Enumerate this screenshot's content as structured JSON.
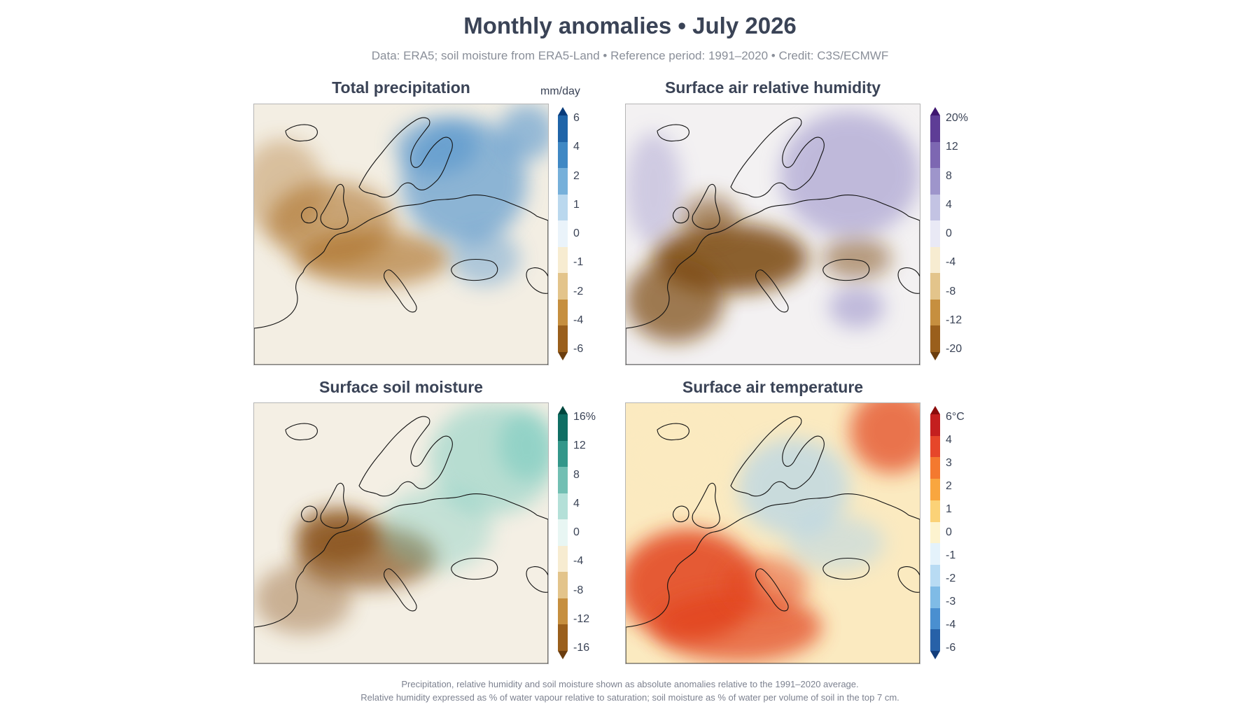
{
  "header": {
    "title": "Monthly anomalies • July 2026",
    "subtitle": "Data: ERA5; soil moisture from ERA5-Land • Reference period: 1991–2020 • Credit: C3S/ECMWF"
  },
  "panels": [
    {
      "id": "precip",
      "title": "Total precipitation",
      "unit": "mm/day",
      "ticks": [
        "6",
        "4",
        "2",
        "1",
        "0",
        "-1",
        "-2",
        "-4",
        "-6"
      ],
      "colors": [
        "#083b7a",
        "#1f64a8",
        "#3f88c4",
        "#76b0da",
        "#bad8ee",
        "#eaf3fa",
        "#f7ecd1",
        "#e3c48b",
        "#c68f3f",
        "#9a5f1c",
        "#6b3d0e"
      ],
      "map_palette": {
        "wet": "#4a8ecb",
        "neutral": "#f3eee3",
        "dry": "#a8691f"
      }
    },
    {
      "id": "humidity",
      "title": "Surface air relative humidity",
      "unit": "",
      "ticks": [
        "20%",
        "12",
        "8",
        "4",
        "0",
        "-4",
        "-8",
        "-12",
        "-20"
      ],
      "colors": [
        "#3f1770",
        "#5e3d96",
        "#7d67b2",
        "#9e95cb",
        "#c3c3e3",
        "#e9e9f5",
        "#f7ecd1",
        "#e3c48b",
        "#c68f3f",
        "#9a5f1c",
        "#6b3d0e"
      ],
      "map_palette": {
        "wet": "#8d83c4",
        "neutral": "#f3f1f2",
        "dry": "#7a4610"
      }
    },
    {
      "id": "soil",
      "title": "Surface soil moisture",
      "unit": "",
      "ticks": [
        "16%",
        "12",
        "8",
        "4",
        "0",
        "-4",
        "-8",
        "-12",
        "-16"
      ],
      "colors": [
        "#00473e",
        "#0f6e63",
        "#33978a",
        "#72bfb3",
        "#b4e0d8",
        "#e8f6f3",
        "#f7ecd1",
        "#e3c48b",
        "#c68f3f",
        "#9a5f1c",
        "#6b3d0e"
      ],
      "map_palette": {
        "wet": "#6ec8bc",
        "neutral": "#f4efe4",
        "dry": "#8a531a"
      }
    },
    {
      "id": "temp",
      "title": "Surface air temperature",
      "unit": "",
      "ticks": [
        "6°C",
        "4",
        "3",
        "2",
        "1",
        "0",
        "-1",
        "-2",
        "-3",
        "-4",
        "-6"
      ],
      "colors": [
        "#8c0c0c",
        "#c41f1f",
        "#e6462a",
        "#f4792f",
        "#f9a63f",
        "#fbd277",
        "#fdf3cf",
        "#e4f2fb",
        "#b8dbf3",
        "#7fbbe6",
        "#4a8fd0",
        "#2761a8",
        "#123d7a"
      ],
      "map_palette": {
        "wet": "#a9d2f0",
        "neutral": "#fbeac0",
        "dry": "#e2421f"
      }
    }
  ],
  "footer": {
    "line1": "Precipitation, relative humidity and soil moisture shown as absolute anomalies relative to the 1991–2020 average.",
    "line2": "Relative humidity expressed as % of water vapour relative to saturation; soil moisture as % of water per volume of soil in the top 7 cm."
  }
}
